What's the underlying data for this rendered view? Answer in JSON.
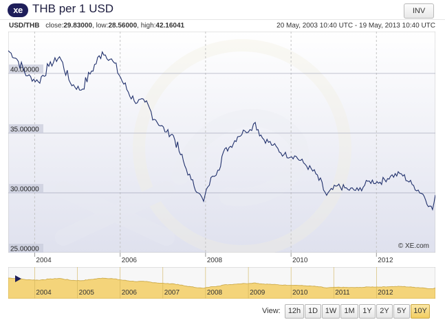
{
  "header": {
    "logo_text": "xe",
    "title": "THB per 1 USD",
    "inv_label": "INV"
  },
  "info": {
    "pair": "USD/THB",
    "close_label": "close:",
    "close": "29.83000",
    "low_label": "low:",
    "low": "28.56000",
    "high_label": "high:",
    "high": "42.16041",
    "range": "20 May, 2003 10:40 UTC - 19 May, 2013 10:40 UTC"
  },
  "copyright": "© XE.com",
  "navigator": {
    "years": [
      "2004",
      "2005",
      "2006",
      "2007",
      "2008",
      "2009",
      "2010",
      "2011",
      "2012"
    ]
  },
  "views": {
    "label": "View:",
    "buttons": [
      "12h",
      "1D",
      "1W",
      "1M",
      "1Y",
      "2Y",
      "5Y",
      "10Y"
    ],
    "active": "10Y"
  },
  "colors": {
    "line": "#1f2f6b",
    "plot_bg_top": "#ffffff",
    "plot_bg_bottom": "#dfe1ee",
    "navigator_fill": "#f4d47a",
    "active_button": "#f2cd60"
  },
  "chart_data": {
    "type": "line",
    "title": "THB per 1 USD",
    "series": [
      {
        "x": [
          "2003-05-20",
          "2003-08-01",
          "2003-11-01",
          "2004-02-01",
          "2004-05-01",
          "2004-08-01",
          "2004-11-01",
          "2005-02-01",
          "2005-05-01",
          "2005-08-01",
          "2005-11-01",
          "2006-02-01",
          "2006-05-01",
          "2006-08-01",
          "2006-11-01",
          "2007-02-01",
          "2007-04-01",
          "2007-06-01",
          "2007-07-20",
          "2007-09-01",
          "2007-11-01",
          "2007-12-15",
          "2008-01-20",
          "2008-03-01",
          "2008-04-15",
          "2008-06-01",
          "2008-08-01",
          "2008-10-01",
          "2008-12-01",
          "2009-01-15",
          "2009-03-01",
          "2009-05-01",
          "2009-08-01",
          "2009-11-01",
          "2010-02-01",
          "2010-05-01",
          "2010-08-01",
          "2010-11-01",
          "2011-02-01",
          "2011-05-01",
          "2011-08-01",
          "2011-11-01",
          "2012-02-01",
          "2012-05-01",
          "2012-08-01",
          "2012-11-01",
          "2013-02-01",
          "2013-04-01",
          "2013-04-25",
          "2013-05-19"
        ],
        "values": [
          41.9,
          41.2,
          39.8,
          39.3,
          40.6,
          41.4,
          39.2,
          38.6,
          40.2,
          41.8,
          41.0,
          39.1,
          37.7,
          37.6,
          36.1,
          35.1,
          34.8,
          33.2,
          32.0,
          31.1,
          30.0,
          29.3,
          30.5,
          31.4,
          31.9,
          33.4,
          33.9,
          34.7,
          35.2,
          35.3,
          35.9,
          34.6,
          34.0,
          33.2,
          33.1,
          32.4,
          31.6,
          29.8,
          30.6,
          30.3,
          30.2,
          31.0,
          30.9,
          31.4,
          31.6,
          30.7,
          29.9,
          28.9,
          28.6,
          29.83
        ]
      }
    ],
    "ylim": [
      25,
      43.5
    ],
    "yticks": [
      "25.00000",
      "30.00000",
      "35.00000",
      "40.00000"
    ],
    "xticks": [
      "2004",
      "2006",
      "2008",
      "2010",
      "2012"
    ],
    "grid": true
  }
}
